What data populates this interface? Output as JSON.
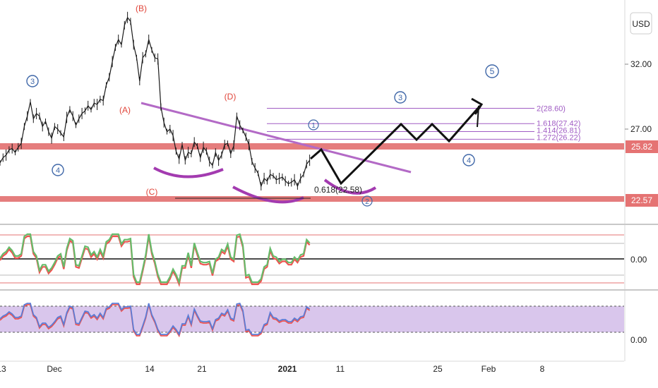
{
  "currency_label": "USD",
  "price_axis": {
    "ticks": [
      "32.00",
      "27.00"
    ],
    "badges": [
      {
        "label": "25.82",
        "value": 25.82,
        "color": "#e57373"
      },
      {
        "label": "22.57",
        "value": 22.57,
        "color": "#e57373"
      }
    ]
  },
  "osc1_axis": {
    "ticks": [
      "0.00"
    ]
  },
  "osc2_axis": {
    "ticks": [
      "0.00"
    ]
  },
  "time_axis": {
    "ticks": [
      "13",
      "Dec",
      "14",
      "21",
      "2021",
      "11",
      "25",
      "Feb",
      "8"
    ]
  },
  "chart_data": {
    "type": "line",
    "series": [
      {
        "values": [
          24.4,
          24.8,
          25.0,
          25.4,
          25.5,
          25.2,
          25.6,
          25.9,
          27.2,
          28.0,
          29.1,
          27.8,
          28.2,
          28.0,
          27.2,
          27.6,
          26.8,
          26.3,
          27.2,
          27.0,
          26.7,
          26.4,
          27.9,
          28.5,
          28.0,
          27.3,
          27.8,
          28.2,
          28.4,
          28.8,
          28.5,
          29.0,
          28.9,
          29.3,
          29.2,
          30.4,
          31.0,
          32.2,
          33.3,
          33.9,
          33.5,
          35.0,
          35.6,
          35.3,
          33.5,
          32.5,
          30.7,
          32.5,
          32.8,
          33.9,
          33.1,
          32.5,
          32.4,
          28.7,
          27.5,
          26.8,
          27.0,
          26.5,
          25.3,
          24.7,
          25.8,
          24.6,
          25.2,
          25.1,
          26.0,
          25.7,
          24.8,
          25.6,
          25.3,
          24.5,
          24.2,
          25.2,
          24.6,
          25.0,
          25.8,
          25.9,
          25.1,
          25.7,
          28.0,
          27.3,
          26.9,
          26.4,
          25.8,
          24.5,
          24.0,
          23.6,
          22.6,
          23.2,
          23.0,
          23.5,
          23.4,
          23.1,
          23.2,
          23.3,
          23.0,
          22.8,
          22.9,
          23.1,
          22.6,
          23.2,
          23.5,
          24.3,
          24.6
        ]
      }
    ],
    "levels": {
      "upper_line": 25.82,
      "lower_line": 22.57
    },
    "fib_levels": [
      {
        "label": "2(28.60)",
        "value": 28.6
      },
      {
        "label": "1.618(27.42)",
        "value": 27.42
      },
      {
        "label": "1.414(26.81)",
        "value": 26.81
      },
      {
        "label": "1.272(26.22)",
        "value": 26.22
      }
    ],
    "retracement_label": "0.618(22.58)",
    "wave_labels": {
      "circled": [
        "3",
        "4",
        "1",
        "2",
        "3",
        "4",
        "5"
      ],
      "lettered": [
        "(B)",
        "(A)",
        "(D)",
        "(C)"
      ]
    }
  }
}
